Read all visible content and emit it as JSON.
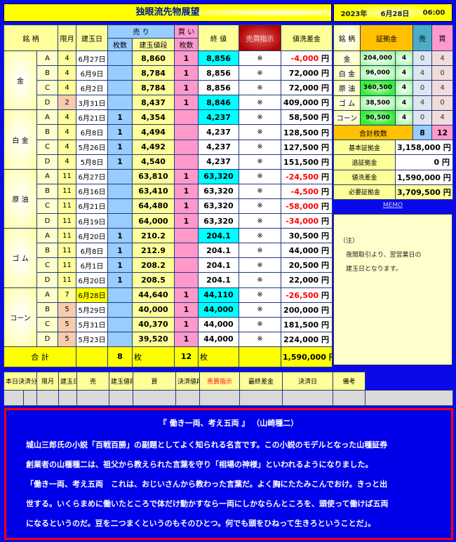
{
  "title": "独眼流先物展望",
  "date": {
    "year": "2023年",
    "day": "6月28日",
    "time": "06:00"
  },
  "main": {
    "headers": {
      "name": "銘 柄",
      "month": "限月",
      "date": "建玉日",
      "sell": "売 り",
      "buy": "買 い",
      "sell_qty": "枚数",
      "price": "建玉値段",
      "buy_qty": "枚数",
      "close": "終 値",
      "instruction": "売買指示",
      "diff": "値洗差金"
    },
    "yen": "円",
    "groups": [
      {
        "name": "金",
        "rows": [
          {
            "sub": "A",
            "month": "4",
            "date": "6月27日",
            "sell": "",
            "price": "8,860",
            "buy": "1",
            "close": "8,856",
            "cyan": true,
            "mark": "※",
            "diff": "-4,000",
            "neg": true
          },
          {
            "sub": "B",
            "month": "4",
            "date": "6月9日",
            "sell": "",
            "price": "8,784",
            "buy": "1",
            "close": "8,856",
            "mark": "※",
            "diff": "72,000"
          },
          {
            "sub": "C",
            "month": "4",
            "date": "6月2日",
            "sell": "",
            "price": "8,784",
            "buy": "1",
            "close": "8,856",
            "mark": "※",
            "diff": "72,000"
          },
          {
            "sub": "D",
            "month": "2",
            "orange": true,
            "date": "3月31日",
            "sell": "",
            "price": "8,437",
            "buy": "1",
            "close": "8,846",
            "cyan": true,
            "mark": "※",
            "diff": "409,000"
          }
        ]
      },
      {
        "name": "白 金",
        "rows": [
          {
            "sub": "A",
            "month": "4",
            "date": "6月21日",
            "sell": "1",
            "price": "4,354",
            "buy": "",
            "close": "4,237",
            "cyan": true,
            "mark": "※",
            "diff": "58,500"
          },
          {
            "sub": "B",
            "month": "4",
            "date": "6月8日",
            "sell": "1",
            "price": "4,494",
            "buy": "",
            "close": "4,237",
            "mark": "※",
            "diff": "128,500"
          },
          {
            "sub": "C",
            "month": "4",
            "date": "5月26日",
            "sell": "1",
            "price": "4,492",
            "buy": "",
            "close": "4,237",
            "mark": "※",
            "diff": "127,500"
          },
          {
            "sub": "D",
            "month": "4",
            "date": "5月8日",
            "sell": "1",
            "price": "4,540",
            "buy": "",
            "close": "4,237",
            "mark": "※",
            "diff": "151,500"
          }
        ]
      },
      {
        "name": "原 油",
        "rows": [
          {
            "sub": "A",
            "month": "11",
            "date": "6月27日",
            "sell": "",
            "price": "63,810",
            "buy": "1",
            "close": "63,320",
            "cyan": true,
            "mark": "※",
            "diff": "-24,500",
            "neg": true
          },
          {
            "sub": "B",
            "month": "11",
            "date": "6月16日",
            "sell": "",
            "price": "63,410",
            "buy": "1",
            "close": "63,320",
            "mark": "※",
            "diff": "-4,500",
            "neg": true
          },
          {
            "sub": "C",
            "month": "11",
            "date": "6月21日",
            "sell": "",
            "price": "64,480",
            "buy": "1",
            "close": "63,320",
            "mark": "※",
            "diff": "-58,000",
            "neg": true
          },
          {
            "sub": "D",
            "month": "11",
            "date": "6月19日",
            "sell": "",
            "price": "64,000",
            "buy": "1",
            "close": "63,320",
            "mark": "※",
            "diff": "-34,000",
            "neg": true
          }
        ]
      },
      {
        "name": "ゴ ム",
        "rows": [
          {
            "sub": "A",
            "month": "11",
            "date": "6月20日",
            "sell": "1",
            "price": "210.2",
            "buy": "",
            "close": "204.1",
            "cyan": true,
            "mark": "※",
            "diff": "30,500"
          },
          {
            "sub": "B",
            "month": "11",
            "date": "6月8日",
            "sell": "1",
            "price": "212.9",
            "buy": "",
            "close": "204.1",
            "mark": "※",
            "diff": "44,000"
          },
          {
            "sub": "C",
            "month": "11",
            "date": "6月1日",
            "sell": "1",
            "price": "208.2",
            "buy": "",
            "close": "204.1",
            "mark": "※",
            "diff": "20,500"
          },
          {
            "sub": "D",
            "month": "11",
            "date": "6月20日",
            "sell": "1",
            "price": "208.5",
            "buy": "",
            "close": "204.1",
            "mark": "※",
            "diff": "22,000"
          }
        ]
      },
      {
        "name": "コーン",
        "rows": [
          {
            "sub": "A",
            "month": "7",
            "date": "6月28日",
            "dateHighlight": true,
            "sell": "",
            "price": "44,640",
            "buy": "1",
            "close": "44,110",
            "cyan": true,
            "mark": "※",
            "diff": "-26,500",
            "neg": true
          },
          {
            "sub": "B",
            "month": "5",
            "orange": true,
            "date": "5月29日",
            "sell": "",
            "price": "40,000",
            "buy": "1",
            "close": "44,000",
            "cyan": true,
            "mark": "※",
            "diff": "200,000"
          },
          {
            "sub": "C",
            "month": "5",
            "orange": true,
            "date": "5月31日",
            "sell": "",
            "price": "40,370",
            "buy": "1",
            "close": "44,000",
            "mark": "※",
            "diff": "181,500"
          },
          {
            "sub": "D",
            "month": "5",
            "orange": true,
            "date": "5月23日",
            "sell": "",
            "price": "39,520",
            "buy": "1",
            "close": "44,000",
            "mark": "※",
            "diff": "224,000"
          }
        ]
      }
    ],
    "total": {
      "label": "合 計",
      "sell": "8",
      "sell_unit": "枚",
      "buy": "12",
      "buy_unit": "枚",
      "diff": "1,590,000"
    }
  },
  "side": {
    "headers": {
      "name": "銘 柄",
      "margin": "証拠金",
      "sell": "売",
      "buy": "買"
    },
    "rows": [
      {
        "name": "金",
        "margin": "204,000",
        "qty": "4",
        "sell": "0",
        "buy": "4"
      },
      {
        "name": "白 金",
        "margin": "96,000",
        "qty": "4",
        "sell": "4",
        "buy": "0"
      },
      {
        "name": "原 油",
        "margin": "360,500",
        "strong": true,
        "qty": "4",
        "sell": "0",
        "buy": "4"
      },
      {
        "name": "ゴ ム",
        "margin": "38,500",
        "qty": "4",
        "sell": "4",
        "buy": "0"
      },
      {
        "name": "コーン",
        "margin": "90,500",
        "strong": true,
        "qty": "4",
        "sell": "0",
        "buy": "4"
      }
    ],
    "total": {
      "label": "合計枚数",
      "sell": "8",
      "buy": "12"
    },
    "summary": [
      {
        "label": "基本証拠金",
        "value": "3,158,000"
      },
      {
        "label": "追証拠金",
        "value": "0"
      },
      {
        "label": "値洗差金",
        "value": "1,590,000"
      },
      {
        "label": "必要証拠金",
        "value": "3,709,500"
      }
    ]
  },
  "memo": {
    "link": "MEMO",
    "lines": [
      "（注）",
      "　夜間取引より、翌営業日の",
      "　建玉日となります。"
    ]
  },
  "settle": {
    "headers": [
      "本日決済分",
      "限月",
      "建玉日",
      "売",
      "建玉値段",
      "買",
      "決済値段",
      "売買指示",
      "最終差金",
      "決済日",
      "備考"
    ]
  },
  "quote": {
    "title": "『 働き一両、考え五両 』 （山崎種二）",
    "lines": [
      "城山三郎氏の小説「百戦百勝」の副題としてよく知られる名言です。この小説のモデルとなった山種証券",
      "創業者の山種種二は、祖父から教えられた言葉を守り「相場の神様」といわれるようになりました。",
      "「働き一両、考え五両　これは、おじいさんから教わった言葉だ。よく胸にたたみこんでおけ。きっと出",
      "世する。いくらまめに働いたところで体だけ動かすなら一両にしかならんところを、頭使って働けば五両",
      "になるというのだ。豆を二つまくというのもそのひとつ。何でも頭をひねって生きろということだ」。"
    ]
  },
  "colors": {
    "background": "#0a0ae8",
    "sell": "#99ccff",
    "buy": "#ff99cc",
    "highlight": "#00ffff",
    "negative": "#ff0000"
  }
}
